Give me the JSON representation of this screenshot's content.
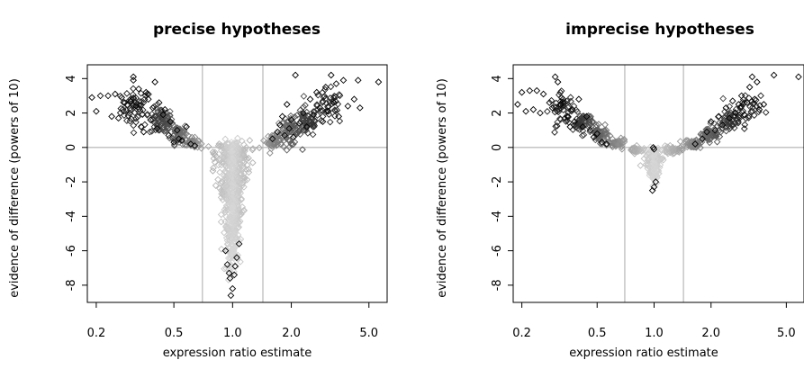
{
  "chart_data": [
    {
      "type": "scatter",
      "title": "precise hypotheses",
      "xlabel": "expression ratio estimate",
      "ylabel": "evidence of difference (powers of 10)",
      "x_scale": "log",
      "xlim": [
        0.18,
        6.2
      ],
      "ylim": [
        -9,
        4.8
      ],
      "x_ticks": [
        "0.2",
        "0.5",
        "1.0",
        "2.0",
        "5.0"
      ],
      "y_ticks": [
        "4",
        "2",
        "0",
        "-2",
        "-4",
        "-6",
        "-8"
      ],
      "reference_lines": {
        "horizontal": [
          0
        ],
        "vertical": [
          0.7,
          1.43
        ]
      },
      "points": [
        [
          0.19,
          2.9
        ],
        [
          0.2,
          2.1
        ],
        [
          0.21,
          3.0
        ],
        [
          0.23,
          3.0
        ],
        [
          0.24,
          1.8
        ],
        [
          0.25,
          3.1
        ],
        [
          0.26,
          1.7
        ],
        [
          0.27,
          2.9
        ],
        [
          0.28,
          2.6
        ],
        [
          0.3,
          2.7
        ],
        [
          0.31,
          4.1
        ],
        [
          0.31,
          3.9
        ],
        [
          0.32,
          2.4
        ],
        [
          0.33,
          3.4
        ],
        [
          0.34,
          1.2
        ],
        [
          0.35,
          0.9
        ],
        [
          0.36,
          3.2
        ],
        [
          0.37,
          2.8
        ],
        [
          0.38,
          1.6
        ],
        [
          0.39,
          2.3
        ],
        [
          0.4,
          3.8
        ],
        [
          0.41,
          1.1
        ],
        [
          0.42,
          2.6
        ],
        [
          0.44,
          1.9
        ],
        [
          0.45,
          2.2
        ],
        [
          0.47,
          0.7
        ],
        [
          0.48,
          1.5
        ],
        [
          0.5,
          0.3
        ],
        [
          0.52,
          1.0
        ],
        [
          0.53,
          0.5
        ],
        [
          0.55,
          0.4
        ],
        [
          0.58,
          1.2
        ],
        [
          0.61,
          0.2
        ],
        [
          0.64,
          0.1
        ],
        [
          1.6,
          0.5
        ],
        [
          1.7,
          0.9
        ],
        [
          1.75,
          1.3
        ],
        [
          1.8,
          1.8
        ],
        [
          1.85,
          0.7
        ],
        [
          1.9,
          2.5
        ],
        [
          1.95,
          1.1
        ],
        [
          2.0,
          1.6
        ],
        [
          2.05,
          0.6
        ],
        [
          2.1,
          4.2
        ],
        [
          2.2,
          1.4
        ],
        [
          2.3,
          2.0
        ],
        [
          2.4,
          1.2
        ],
        [
          2.5,
          2.8
        ],
        [
          2.6,
          1.9
        ],
        [
          2.7,
          3.2
        ],
        [
          2.8,
          2.3
        ],
        [
          2.9,
          1.5
        ],
        [
          3.0,
          3.5
        ],
        [
          3.1,
          2.1
        ],
        [
          3.2,
          4.2
        ],
        [
          3.3,
          2.6
        ],
        [
          3.4,
          3.7
        ],
        [
          3.5,
          1.8
        ],
        [
          3.7,
          3.9
        ],
        [
          3.9,
          2.4
        ],
        [
          4.2,
          2.8
        ],
        [
          4.4,
          3.9
        ],
        [
          4.5,
          2.3
        ],
        [
          5.6,
          3.8
        ],
        [
          0.94,
          -6.8
        ],
        [
          0.96,
          -7.3
        ],
        [
          0.97,
          -7.6
        ],
        [
          0.98,
          -8.6
        ],
        [
          1.0,
          -8.2
        ],
        [
          1.02,
          -7.4
        ],
        [
          1.03,
          -6.9
        ],
        [
          1.05,
          -6.4
        ],
        [
          0.92,
          -6.0
        ],
        [
          1.08,
          -5.6
        ]
      ],
      "density": [
        {
          "x": 0.32,
          "y": 2.3,
          "sx": 0.09,
          "sy": 0.55,
          "n": 60
        },
        {
          "x": 0.43,
          "y": 1.5,
          "sx": 0.07,
          "sy": 0.4,
          "n": 70
        },
        {
          "x": 0.53,
          "y": 0.8,
          "sx": 0.05,
          "sy": 0.3,
          "n": 60
        },
        {
          "x": 0.62,
          "y": 0.25,
          "sx": 0.04,
          "sy": 0.15,
          "n": 40
        },
        {
          "x": 1.62,
          "y": 0.35,
          "sx": 0.04,
          "sy": 0.2,
          "n": 40
        },
        {
          "x": 1.95,
          "y": 0.9,
          "sx": 0.07,
          "sy": 0.4,
          "n": 70
        },
        {
          "x": 2.4,
          "y": 1.5,
          "sx": 0.08,
          "sy": 0.45,
          "n": 60
        },
        {
          "x": 3.1,
          "y": 2.3,
          "sx": 0.09,
          "sy": 0.5,
          "n": 40
        },
        {
          "x": 1.0,
          "y": -0.3,
          "sx": 0.1,
          "sy": 0.35,
          "n": 170
        },
        {
          "x": 1.0,
          "y": -1.5,
          "sx": 0.08,
          "sy": 0.6,
          "n": 170
        },
        {
          "x": 1.0,
          "y": -3.0,
          "sx": 0.06,
          "sy": 0.7,
          "n": 150
        },
        {
          "x": 1.0,
          "y": -4.6,
          "sx": 0.045,
          "sy": 0.7,
          "n": 110
        },
        {
          "x": 1.0,
          "y": -6.0,
          "sx": 0.035,
          "sy": 0.6,
          "n": 60
        }
      ]
    },
    {
      "type": "scatter",
      "title": "imprecise hypotheses",
      "xlabel": "expression ratio estimate",
      "ylabel": "evidence of difference (powers of 10)",
      "x_scale": "log",
      "xlim": [
        0.18,
        6.2
      ],
      "ylim": [
        -9,
        4.8
      ],
      "x_ticks": [
        "0.2",
        "0.5",
        "1.0",
        "2.0",
        "5.0"
      ],
      "y_ticks": [
        "4",
        "2",
        "0",
        "-2",
        "-4",
        "-6",
        "-8"
      ],
      "reference_lines": {
        "horizontal": [
          0
        ],
        "vertical": [
          0.7,
          1.43
        ]
      },
      "points": [
        [
          0.19,
          2.5
        ],
        [
          0.2,
          3.2
        ],
        [
          0.21,
          2.1
        ],
        [
          0.22,
          3.3
        ],
        [
          0.23,
          2.2
        ],
        [
          0.24,
          3.3
        ],
        [
          0.25,
          2.0
        ],
        [
          0.26,
          3.1
        ],
        [
          0.28,
          2.6
        ],
        [
          0.29,
          2.3
        ],
        [
          0.3,
          4.1
        ],
        [
          0.31,
          3.8
        ],
        [
          0.32,
          2.5
        ],
        [
          0.33,
          2.8
        ],
        [
          0.35,
          1.8
        ],
        [
          0.36,
          1.2
        ],
        [
          0.37,
          2.2
        ],
        [
          0.38,
          1.5
        ],
        [
          0.4,
          2.8
        ],
        [
          0.42,
          1.2
        ],
        [
          0.44,
          1.8
        ],
        [
          0.46,
          1.0
        ],
        [
          0.48,
          0.6
        ],
        [
          0.5,
          0.8
        ],
        [
          0.53,
          0.3
        ],
        [
          0.56,
          0.2
        ],
        [
          1.65,
          0.2
        ],
        [
          1.8,
          0.5
        ],
        [
          1.9,
          0.9
        ],
        [
          2.0,
          1.5
        ],
        [
          2.1,
          1.0
        ],
        [
          2.2,
          1.8
        ],
        [
          2.3,
          1.3
        ],
        [
          2.4,
          2.3
        ],
        [
          2.5,
          1.7
        ],
        [
          2.6,
          2.7
        ],
        [
          2.7,
          2.0
        ],
        [
          2.8,
          2.5
        ],
        [
          2.9,
          3.0
        ],
        [
          3.0,
          1.9
        ],
        [
          3.1,
          2.6
        ],
        [
          3.2,
          3.5
        ],
        [
          3.3,
          4.1
        ],
        [
          3.4,
          2.8
        ],
        [
          3.5,
          3.8
        ],
        [
          3.6,
          2.2
        ],
        [
          3.8,
          2.5
        ],
        [
          4.3,
          4.2
        ],
        [
          5.8,
          4.1
        ],
        [
          0.98,
          -2.5
        ],
        [
          1.0,
          -2.3
        ],
        [
          1.02,
          -2.0
        ],
        [
          0.99,
          0.0
        ],
        [
          1.0,
          -0.1
        ]
      ],
      "density": [
        {
          "x": 0.33,
          "y": 2.2,
          "sx": 0.08,
          "sy": 0.45,
          "n": 50
        },
        {
          "x": 0.42,
          "y": 1.4,
          "sx": 0.06,
          "sy": 0.3,
          "n": 60
        },
        {
          "x": 0.52,
          "y": 0.75,
          "sx": 0.05,
          "sy": 0.22,
          "n": 50
        },
        {
          "x": 0.64,
          "y": 0.2,
          "sx": 0.05,
          "sy": 0.12,
          "n": 50
        },
        {
          "x": 0.8,
          "y": -0.15,
          "sx": 0.04,
          "sy": 0.1,
          "n": 40
        },
        {
          "x": 1.25,
          "y": -0.15,
          "sx": 0.06,
          "sy": 0.1,
          "n": 40
        },
        {
          "x": 1.6,
          "y": 0.2,
          "sx": 0.05,
          "sy": 0.12,
          "n": 50
        },
        {
          "x": 1.95,
          "y": 0.75,
          "sx": 0.06,
          "sy": 0.2,
          "n": 50
        },
        {
          "x": 2.4,
          "y": 1.4,
          "sx": 0.08,
          "sy": 0.3,
          "n": 50
        },
        {
          "x": 3.0,
          "y": 2.2,
          "sx": 0.1,
          "sy": 0.4,
          "n": 40
        },
        {
          "x": 1.0,
          "y": -0.6,
          "sx": 0.05,
          "sy": 0.3,
          "n": 80
        },
        {
          "x": 1.0,
          "y": -1.4,
          "sx": 0.03,
          "sy": 0.35,
          "n": 60
        }
      ]
    }
  ]
}
